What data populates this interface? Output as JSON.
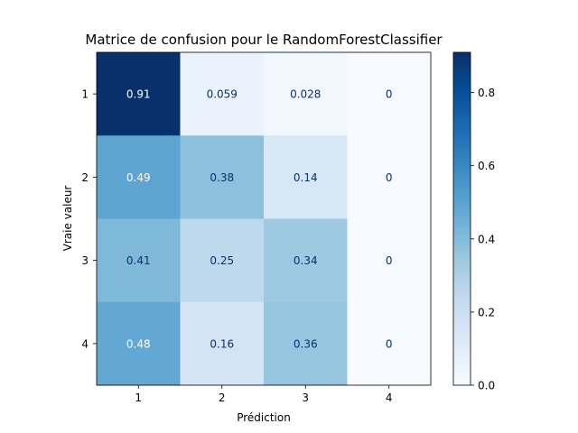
{
  "chart_data": {
    "type": "heatmap",
    "title": "Matrice de confusion pour le RandomForestClassifier",
    "xlabel": "Prédiction",
    "ylabel": "Vraie valeur",
    "x_categories": [
      "1",
      "2",
      "3",
      "4"
    ],
    "y_categories": [
      "1",
      "2",
      "3",
      "4"
    ],
    "values": [
      [
        0.91,
        0.059,
        0.028,
        0
      ],
      [
        0.49,
        0.38,
        0.14,
        0
      ],
      [
        0.41,
        0.25,
        0.34,
        0
      ],
      [
        0.48,
        0.16,
        0.36,
        0
      ]
    ],
    "value_labels": [
      [
        "0.91",
        "0.059",
        "0.028",
        "0"
      ],
      [
        "0.49",
        "0.38",
        "0.14",
        "0"
      ],
      [
        "0.41",
        "0.25",
        "0.34",
        "0"
      ],
      [
        "0.48",
        "0.16",
        "0.36",
        "0"
      ]
    ],
    "colormap": "Blues",
    "colorbar": {
      "range": [
        0,
        0.91
      ],
      "ticks": [
        0.0,
        0.2,
        0.4,
        0.6,
        0.8
      ],
      "tick_labels": [
        "0.0",
        "0.2",
        "0.4",
        "0.6",
        "0.8"
      ]
    },
    "grid": false
  }
}
